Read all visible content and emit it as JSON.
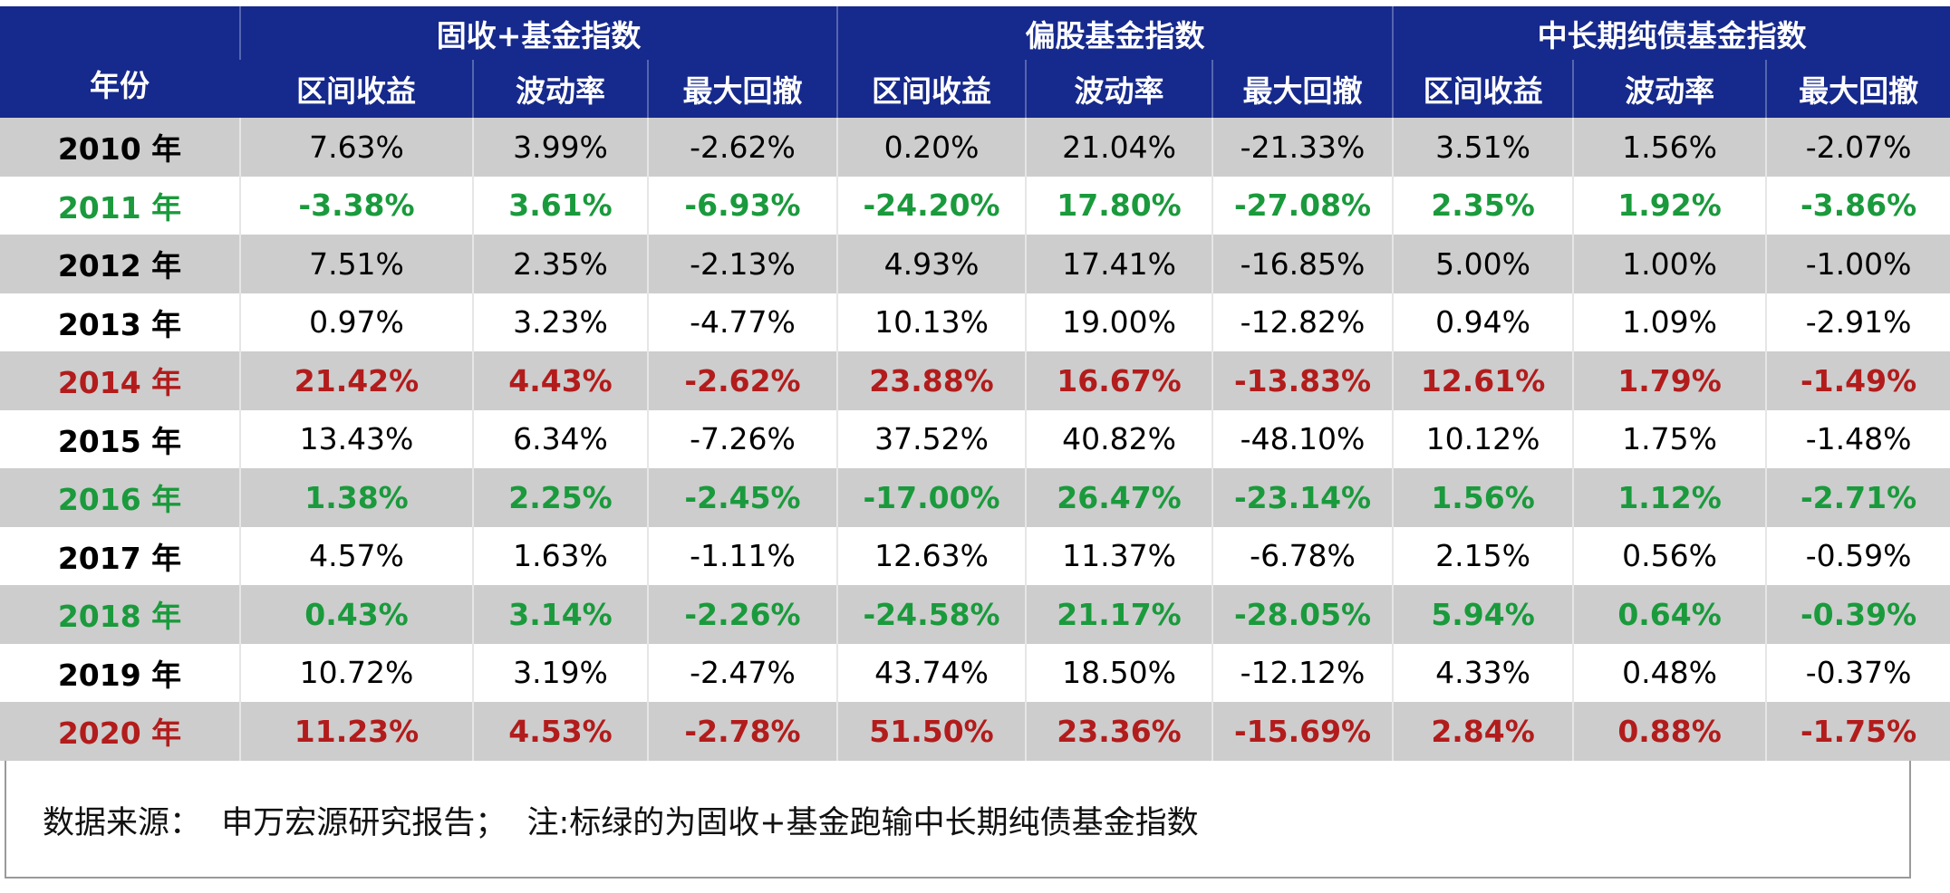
{
  "table": {
    "year_header": "年份",
    "groups": [
      "固收+基金指数",
      "偏股基金指数",
      "中长期纯债基金指数"
    ],
    "subheaders": [
      "区间收益",
      "波动率",
      "最大回撤",
      "区间收益",
      "波动率",
      "最大回撤",
      "区间收益",
      "波动率",
      "最大回撤"
    ],
    "rows": [
      {
        "color": "#000000",
        "bold": false,
        "cells": [
          "2010 年",
          "7.63%",
          "3.99%",
          "-2.62%",
          "0.20%",
          "21.04%",
          "-21.33%",
          "3.51%",
          "1.56%",
          "-2.07%"
        ]
      },
      {
        "color": "#1a9a3c",
        "bold": true,
        "cells": [
          "2011 年",
          "-3.38%",
          "3.61%",
          "-6.93%",
          "-24.20%",
          "17.80%",
          "-27.08%",
          "2.35%",
          "1.92%",
          "-3.86%"
        ]
      },
      {
        "color": "#000000",
        "bold": false,
        "cells": [
          "2012 年",
          "7.51%",
          "2.35%",
          "-2.13%",
          "4.93%",
          "17.41%",
          "-16.85%",
          "5.00%",
          "1.00%",
          "-1.00%"
        ]
      },
      {
        "color": "#000000",
        "bold": false,
        "cells": [
          "2013 年",
          "0.97%",
          "3.23%",
          "-4.77%",
          "10.13%",
          "19.00%",
          "-12.82%",
          "0.94%",
          "1.09%",
          "-2.91%"
        ]
      },
      {
        "color": "#b21c1c",
        "bold": true,
        "cells": [
          "2014 年",
          "21.42%",
          "4.43%",
          "-2.62%",
          "23.88%",
          "16.67%",
          "-13.83%",
          "12.61%",
          "1.79%",
          "-1.49%"
        ]
      },
      {
        "color": "#000000",
        "bold": false,
        "cells": [
          "2015 年",
          "13.43%",
          "6.34%",
          "-7.26%",
          "37.52%",
          "40.82%",
          "-48.10%",
          "10.12%",
          "1.75%",
          "-1.48%"
        ]
      },
      {
        "color": "#1a9a3c",
        "bold": true,
        "cells": [
          "2016 年",
          "1.38%",
          "2.25%",
          "-2.45%",
          "-17.00%",
          "26.47%",
          "-23.14%",
          "1.56%",
          "1.12%",
          "-2.71%"
        ]
      },
      {
        "color": "#000000",
        "bold": false,
        "cells": [
          "2017 年",
          "4.57%",
          "1.63%",
          "-1.11%",
          "12.63%",
          "11.37%",
          "-6.78%",
          "2.15%",
          "0.56%",
          "-0.59%"
        ]
      },
      {
        "color": "#1a9a3c",
        "bold": true,
        "cells": [
          "2018 年",
          "0.43%",
          "3.14%",
          "-2.26%",
          "-24.58%",
          "21.17%",
          "-28.05%",
          "5.94%",
          "0.64%",
          "-0.39%"
        ]
      },
      {
        "color": "#000000",
        "bold": false,
        "cells": [
          "2019 年",
          "10.72%",
          "3.19%",
          "-2.47%",
          "43.74%",
          "18.50%",
          "-12.12%",
          "4.33%",
          "0.48%",
          "-0.37%"
        ]
      },
      {
        "color": "#b21c1c",
        "bold": true,
        "cells": [
          "2020 年",
          "11.23%",
          "4.53%",
          "-2.78%",
          "51.50%",
          "23.36%",
          "-15.69%",
          "2.84%",
          "0.88%",
          "-1.75%"
        ]
      }
    ]
  },
  "footer": "数据来源：  申万宏源研究报告；  注:标绿的为固收+基金跑输中长期纯债基金指数"
}
